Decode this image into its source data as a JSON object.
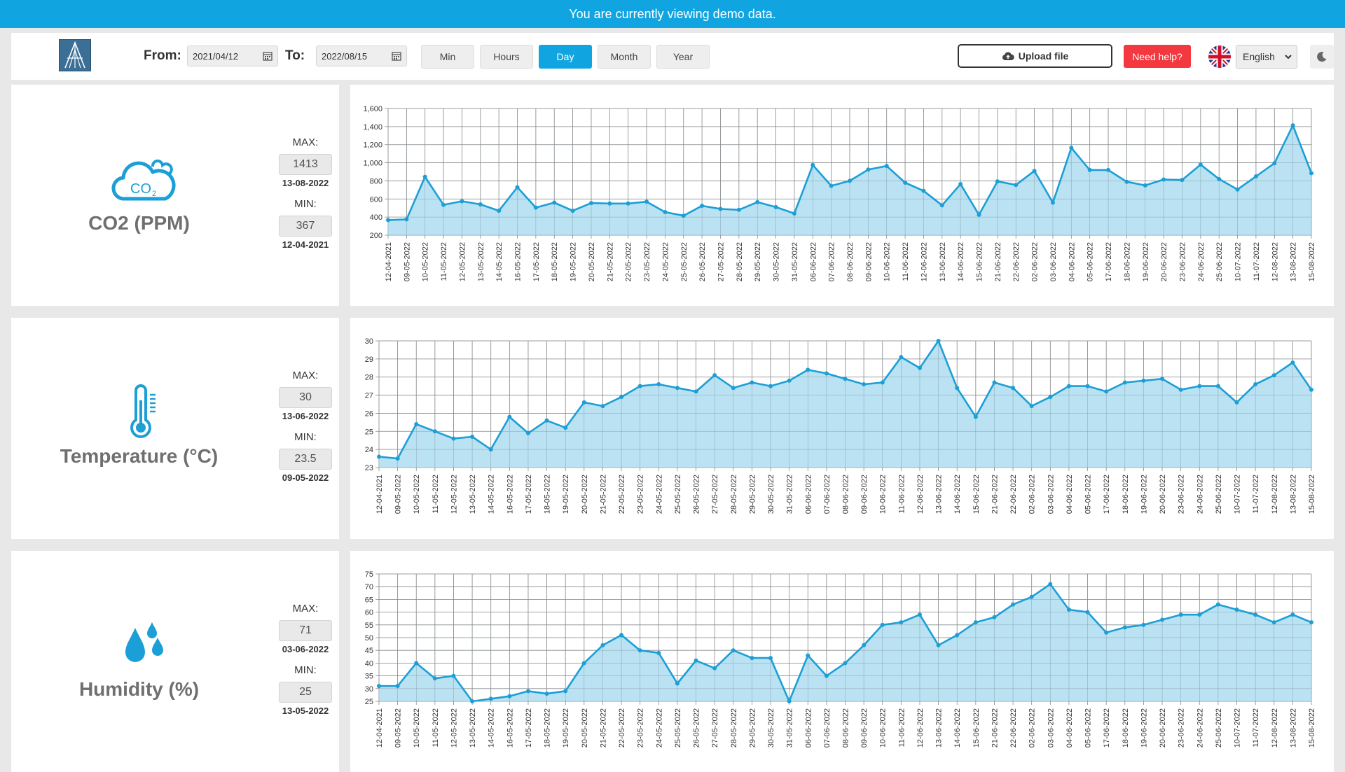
{
  "banner": {
    "text": "You are currently viewing demo data."
  },
  "toolbar": {
    "from_label": "From:",
    "from_value": "2021/04/12",
    "to_label": "To:",
    "to_value": "2022/08/15",
    "granularity": [
      {
        "label": "Min",
        "active": false
      },
      {
        "label": "Hours",
        "active": false
      },
      {
        "label": "Day",
        "active": true
      },
      {
        "label": "Month",
        "active": false
      },
      {
        "label": "Year",
        "active": false
      }
    ],
    "upload_label": "Upload file",
    "help_label": "Need help?",
    "language": "English",
    "accent_color": "#10a5e0",
    "help_color": "#f4383f"
  },
  "dates": [
    "12-04-2021",
    "09-05-2022",
    "10-05-2022",
    "11-05-2022",
    "12-05-2022",
    "13-05-2022",
    "14-05-2022",
    "16-05-2022",
    "17-05-2022",
    "18-05-2022",
    "19-05-2022",
    "20-05-2022",
    "21-05-2022",
    "22-05-2022",
    "23-05-2022",
    "24-05-2022",
    "25-05-2022",
    "26-05-2022",
    "27-05-2022",
    "28-05-2022",
    "29-05-2022",
    "30-05-2022",
    "31-05-2022",
    "06-06-2022",
    "07-06-2022",
    "08-06-2022",
    "09-06-2022",
    "10-06-2022",
    "11-06-2022",
    "12-06-2022",
    "13-06-2022",
    "14-06-2022",
    "15-06-2022",
    "21-06-2022",
    "22-06-2022",
    "02-06-2022",
    "03-06-2022",
    "04-06-2022",
    "05-06-2022",
    "17-06-2022",
    "18-06-2022",
    "19-06-2022",
    "20-06-2022",
    "23-06-2022",
    "24-06-2022",
    "25-06-2022",
    "10-07-2022",
    "11-07-2022",
    "12-08-2022",
    "13-08-2022",
    "15-08-2022"
  ],
  "sensors": [
    {
      "id": "co2",
      "title": "CO2 (PPM)",
      "icon": "co2-cloud-icon",
      "max_label": "MAX:",
      "max": "1413",
      "max_date": "13-08-2022",
      "min_label": "MIN:",
      "min": "367",
      "min_date": "12-04-2021"
    },
    {
      "id": "temp",
      "title": "Temperature (°C)",
      "icon": "thermometer-icon",
      "max_label": "MAX:",
      "max": "30",
      "max_date": "13-06-2022",
      "min_label": "MIN:",
      "min": "23.5",
      "min_date": "09-05-2022"
    },
    {
      "id": "hum",
      "title": "Humidity (%)",
      "icon": "water-drops-icon",
      "max_label": "MAX:",
      "max": "71",
      "max_date": "03-06-2022",
      "min_label": "MIN:",
      "min": "25",
      "min_date": "13-05-2022"
    }
  ],
  "chart_data": [
    {
      "type": "area",
      "series": [
        {
          "values": [
            367,
            375,
            845,
            535,
            575,
            540,
            470,
            730,
            505,
            560,
            470,
            555,
            550,
            550,
            570,
            455,
            415,
            525,
            490,
            480,
            565,
            510,
            440,
            975,
            745,
            800,
            925,
            965,
            780,
            690,
            530,
            765,
            425,
            795,
            755,
            910,
            560,
            1165,
            920,
            920,
            790,
            750,
            815,
            810,
            980,
            820,
            705,
            850,
            995,
            1413,
            885
          ]
        }
      ],
      "ylim": [
        200,
        1600
      ],
      "yticks": [
        200,
        400,
        600,
        800,
        1000,
        1200,
        1400,
        1600
      ],
      "ytick_labels": [
        "200",
        "400",
        "600",
        "800",
        "1,000",
        "1,200",
        "1,400",
        "1,600"
      ],
      "grid": true,
      "color": "#1b9fd6",
      "fill": "#b3dff2"
    },
    {
      "type": "area",
      "series": [
        {
          "values": [
            23.6,
            23.5,
            25.4,
            25.0,
            24.6,
            24.7,
            24.0,
            25.8,
            24.9,
            25.6,
            25.2,
            26.6,
            26.4,
            26.9,
            27.5,
            27.6,
            27.4,
            27.2,
            28.1,
            27.4,
            27.7,
            27.5,
            27.8,
            28.4,
            28.2,
            27.9,
            27.6,
            27.7,
            29.1,
            28.5,
            30.0,
            27.4,
            25.8,
            27.7,
            27.4,
            26.4,
            26.9,
            27.5,
            27.5,
            27.2,
            27.7,
            27.8,
            27.9,
            27.3,
            27.5,
            27.5,
            26.6,
            27.6,
            28.1,
            28.8,
            27.3
          ]
        }
      ],
      "ylim": [
        23,
        30
      ],
      "yticks": [
        23,
        24,
        25,
        26,
        27,
        28,
        29,
        30
      ],
      "ytick_labels": [
        "23",
        "24",
        "25",
        "26",
        "27",
        "28",
        "29",
        "30"
      ],
      "grid": true,
      "color": "#1b9fd6",
      "fill": "#b3dff2"
    },
    {
      "type": "area",
      "series": [
        {
          "values": [
            31,
            31,
            40,
            34,
            35,
            25,
            26,
            27,
            29,
            28,
            29,
            40,
            47,
            51,
            45,
            44,
            32,
            41,
            38,
            45,
            42,
            42,
            25,
            43,
            35,
            40,
            47,
            55,
            56,
            59,
            47,
            51,
            56,
            58,
            63,
            66,
            71,
            61,
            60,
            52,
            54,
            55,
            57,
            59,
            59,
            63,
            61,
            59,
            56,
            59,
            56
          ]
        }
      ],
      "ylim": [
        25,
        75
      ],
      "yticks": [
        25,
        30,
        35,
        40,
        45,
        50,
        55,
        60,
        65,
        70,
        75
      ],
      "ytick_labels": [
        "25",
        "30",
        "35",
        "40",
        "45",
        "50",
        "55",
        "60",
        "65",
        "70",
        "75"
      ],
      "grid": true,
      "color": "#1b9fd6",
      "fill": "#b3dff2"
    }
  ]
}
